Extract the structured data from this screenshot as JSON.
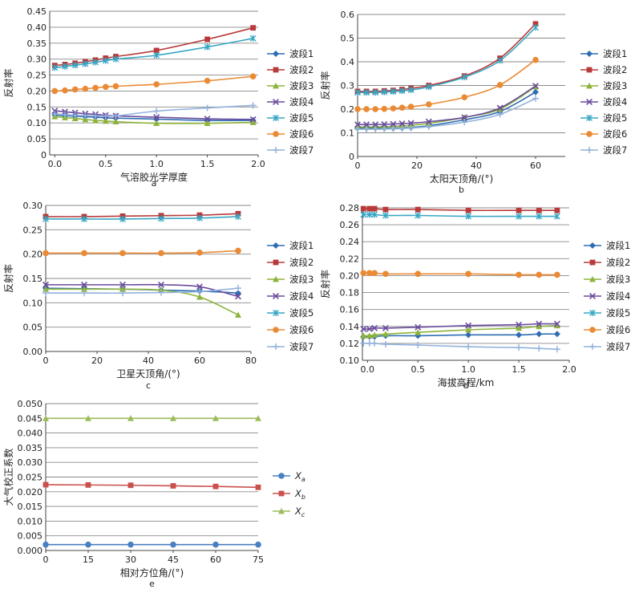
{
  "styles": {
    "colors": [
      "#2e6db4",
      "#b83a3a",
      "#8db33a",
      "#6a4c9c",
      "#37a7c4",
      "#ea8a34",
      "#93b2dc"
    ],
    "markers": [
      "diamond",
      "square",
      "triangle",
      "x",
      "asterisk",
      "circle",
      "plus"
    ],
    "e_colors": [
      "#4a7fc0",
      "#c9504d",
      "#9bbb59"
    ],
    "e_markers": [
      "circle",
      "square",
      "triangle"
    ]
  },
  "legend_bands": [
    "波段1",
    "波段2",
    "波段3",
    "波段4",
    "波段5",
    "波段6",
    "波段7"
  ],
  "legend_e": [
    {
      "main": "X",
      "sub": "a"
    },
    {
      "main": "X",
      "sub": "b"
    },
    {
      "main": "X",
      "sub": "c"
    }
  ],
  "chart_data": [
    {
      "id": "a",
      "type": "line",
      "letter": "a",
      "xlabel": "气溶胶光学厚度",
      "ylabel": "反射率",
      "xlim": [
        -0.05,
        2.0
      ],
      "ylim": [
        0,
        0.45
      ],
      "xticks": [
        0.0,
        0.5,
        1.0,
        1.5,
        2.0
      ],
      "yticks": [
        0,
        0.05,
        0.1,
        0.15,
        0.2,
        0.25,
        0.3,
        0.35,
        0.4,
        0.45
      ],
      "xtick_labels": [
        "0.0",
        "0.5",
        "1.0",
        "1.5",
        "2.0"
      ],
      "ytick_labels": [
        "0",
        "0.05",
        "0.10",
        "0.15",
        "0.20",
        "0.25",
        "0.30",
        "0.35",
        "0.40",
        "0.45"
      ],
      "x": [
        0.0,
        0.1,
        0.2,
        0.3,
        0.4,
        0.5,
        0.6,
        1.0,
        1.5,
        1.95
      ],
      "series": [
        {
          "name": "波段1",
          "values": [
            0.125,
            0.123,
            0.121,
            0.12,
            0.118,
            0.116,
            0.115,
            0.112,
            0.108,
            0.108
          ]
        },
        {
          "name": "波段2",
          "values": [
            0.28,
            0.283,
            0.287,
            0.292,
            0.297,
            0.303,
            0.308,
            0.327,
            0.362,
            0.398
          ]
        },
        {
          "name": "波段3",
          "values": [
            0.12,
            0.117,
            0.114,
            0.111,
            0.108,
            0.106,
            0.104,
            0.099,
            0.099,
            0.102
          ]
        },
        {
          "name": "波段4",
          "values": [
            0.138,
            0.135,
            0.132,
            0.129,
            0.127,
            0.124,
            0.122,
            0.118,
            0.113,
            0.111
          ]
        },
        {
          "name": "波段5",
          "values": [
            0.273,
            0.277,
            0.281,
            0.285,
            0.29,
            0.295,
            0.3,
            0.312,
            0.338,
            0.365
          ]
        },
        {
          "name": "波段6",
          "values": [
            0.2,
            0.202,
            0.205,
            0.207,
            0.21,
            0.213,
            0.215,
            0.221,
            0.232,
            0.246
          ]
        },
        {
          "name": "波段7",
          "values": [
            0.128,
            0.126,
            0.124,
            0.123,
            0.122,
            0.122,
            0.122,
            0.137,
            0.147,
            0.155
          ]
        }
      ]
    },
    {
      "id": "b",
      "type": "line",
      "letter": "b",
      "xlabel": "太阳天顶角/(°)",
      "ylabel": "反射率",
      "xlim": [
        0,
        70
      ],
      "ylim": [
        0,
        0.6
      ],
      "xticks": [
        0,
        20,
        40,
        60
      ],
      "yticks": [
        0,
        0.1,
        0.2,
        0.3,
        0.4,
        0.5,
        0.6
      ],
      "xtick_labels": [
        "0",
        "20",
        "40",
        "60"
      ],
      "ytick_labels": [
        "0",
        "0.1",
        "0.2",
        "0.3",
        "0.4",
        "0.5",
        "0.6"
      ],
      "x": [
        0,
        3,
        6,
        9,
        12,
        15,
        18,
        24,
        36,
        48,
        60
      ],
      "series": [
        {
          "name": "波段1",
          "values": [
            0.12,
            0.12,
            0.12,
            0.12,
            0.12,
            0.121,
            0.123,
            0.13,
            0.155,
            0.19,
            0.272
          ]
        },
        {
          "name": "波段2",
          "values": [
            0.275,
            0.275,
            0.275,
            0.277,
            0.279,
            0.283,
            0.288,
            0.3,
            0.34,
            0.415,
            0.56
          ]
        },
        {
          "name": "波段3",
          "values": [
            0.125,
            0.125,
            0.125,
            0.126,
            0.127,
            0.129,
            0.132,
            0.14,
            0.165,
            0.2,
            0.295
          ]
        },
        {
          "name": "波段4",
          "values": [
            0.135,
            0.135,
            0.135,
            0.136,
            0.137,
            0.139,
            0.141,
            0.147,
            0.165,
            0.205,
            0.298
          ]
        },
        {
          "name": "波段5",
          "values": [
            0.27,
            0.27,
            0.27,
            0.272,
            0.274,
            0.277,
            0.281,
            0.294,
            0.335,
            0.405,
            0.545
          ]
        },
        {
          "name": "波段6",
          "values": [
            0.2,
            0.2,
            0.2,
            0.201,
            0.203,
            0.206,
            0.21,
            0.22,
            0.25,
            0.302,
            0.408
          ]
        },
        {
          "name": "波段7",
          "values": [
            0.115,
            0.115,
            0.115,
            0.116,
            0.117,
            0.118,
            0.12,
            0.126,
            0.145,
            0.178,
            0.245
          ]
        }
      ]
    },
    {
      "id": "c",
      "type": "line",
      "letter": "c",
      "xlabel": "卫星天顶角/(°)",
      "ylabel": "反射率",
      "xlim": [
        0,
        80
      ],
      "ylim": [
        0,
        0.3
      ],
      "xticks": [
        0,
        20,
        40,
        60,
        80
      ],
      "yticks": [
        0,
        0.05,
        0.1,
        0.15,
        0.2,
        0.25,
        0.3
      ],
      "xtick_labels": [
        "0",
        "20",
        "40",
        "60",
        "80"
      ],
      "ytick_labels": [
        "0.00",
        "0.05",
        "0.10",
        "0.15",
        "0.20",
        "0.25",
        "0.30"
      ],
      "x": [
        0,
        15,
        30,
        45,
        60,
        75
      ],
      "series": [
        {
          "name": "波段1",
          "values": [
            0.13,
            0.129,
            0.128,
            0.126,
            0.124,
            0.12
          ]
        },
        {
          "name": "波段2",
          "values": [
            0.277,
            0.277,
            0.278,
            0.279,
            0.28,
            0.283
          ]
        },
        {
          "name": "波段3",
          "values": [
            0.128,
            0.128,
            0.128,
            0.126,
            0.112,
            0.075
          ]
        },
        {
          "name": "波段4",
          "values": [
            0.137,
            0.137,
            0.137,
            0.137,
            0.133,
            0.113
          ]
        },
        {
          "name": "波段5",
          "values": [
            0.272,
            0.272,
            0.272,
            0.273,
            0.274,
            0.277
          ]
        },
        {
          "name": "波段6",
          "values": [
            0.202,
            0.202,
            0.202,
            0.202,
            0.203,
            0.207
          ]
        },
        {
          "name": "波段7",
          "values": [
            0.12,
            0.12,
            0.12,
            0.121,
            0.123,
            0.13
          ]
        }
      ]
    },
    {
      "id": "d",
      "type": "line",
      "letter": "d",
      "xlabel": "海拔高程/km",
      "ylabel": "反射率",
      "xlim": [
        -0.05,
        2.0
      ],
      "ylim": [
        0.1,
        0.28
      ],
      "xticks": [
        0.0,
        0.5,
        1.0,
        1.5,
        2.0
      ],
      "yticks": [
        0.1,
        0.12,
        0.14,
        0.16,
        0.18,
        0.2,
        0.22,
        0.24,
        0.26,
        0.28
      ],
      "xtick_labels": [
        "0.0",
        "0.5",
        "1.0",
        "1.5",
        "2.0"
      ],
      "ytick_labels": [
        "0.10",
        "0.12",
        "0.14",
        "0.16",
        "0.18",
        "0.20",
        "0.22",
        "0.24",
        "0.26",
        "0.28"
      ],
      "x": [
        -0.04,
        0.02,
        0.07,
        0.18,
        0.5,
        1.0,
        1.5,
        1.7,
        1.88
      ],
      "series": [
        {
          "name": "波段1",
          "values": [
            0.128,
            0.128,
            0.128,
            0.129,
            0.129,
            0.13,
            0.13,
            0.131,
            0.131
          ]
        },
        {
          "name": "波段2",
          "values": [
            0.279,
            0.279,
            0.279,
            0.278,
            0.278,
            0.277,
            0.277,
            0.277,
            0.277
          ]
        },
        {
          "name": "波段3",
          "values": [
            0.129,
            0.129,
            0.13,
            0.131,
            0.133,
            0.136,
            0.138,
            0.14,
            0.141
          ]
        },
        {
          "name": "波段4",
          "values": [
            0.137,
            0.137,
            0.138,
            0.138,
            0.139,
            0.141,
            0.142,
            0.143,
            0.143
          ]
        },
        {
          "name": "波段5",
          "values": [
            0.272,
            0.272,
            0.272,
            0.271,
            0.271,
            0.27,
            0.27,
            0.27,
            0.27
          ]
        },
        {
          "name": "波段6",
          "values": [
            0.203,
            0.203,
            0.203,
            0.202,
            0.202,
            0.202,
            0.201,
            0.201,
            0.201
          ]
        },
        {
          "name": "波段7",
          "values": [
            0.12,
            0.12,
            0.12,
            0.119,
            0.118,
            0.116,
            0.115,
            0.114,
            0.113
          ]
        }
      ]
    },
    {
      "id": "e",
      "type": "line",
      "letter": "e",
      "xlabel": "相对方位角/(°)",
      "ylabel": "大气校正系数",
      "xlim": [
        0,
        75
      ],
      "ylim": [
        0,
        0.05
      ],
      "xticks": [
        0,
        15,
        30,
        45,
        60,
        75
      ],
      "yticks": [
        0,
        0.005,
        0.01,
        0.015,
        0.02,
        0.025,
        0.03,
        0.035,
        0.04,
        0.045,
        0.05
      ],
      "xtick_labels": [
        "0",
        "15",
        "30",
        "45",
        "60",
        "75"
      ],
      "ytick_labels": [
        "0.000",
        "0.005",
        "0.010",
        "0.015",
        "0.020",
        "0.025",
        "0.030",
        "0.035",
        "0.040",
        "0.045",
        "0.050"
      ],
      "x": [
        0,
        15,
        30,
        45,
        60,
        75
      ],
      "series": [
        {
          "name": "Xa",
          "values": [
            0.002,
            0.002,
            0.002,
            0.002,
            0.002,
            0.002
          ]
        },
        {
          "name": "Xb",
          "values": [
            0.0224,
            0.0223,
            0.0222,
            0.022,
            0.0218,
            0.0215
          ]
        },
        {
          "name": "Xc",
          "values": [
            0.045,
            0.045,
            0.045,
            0.045,
            0.045,
            0.045
          ]
        }
      ]
    }
  ]
}
